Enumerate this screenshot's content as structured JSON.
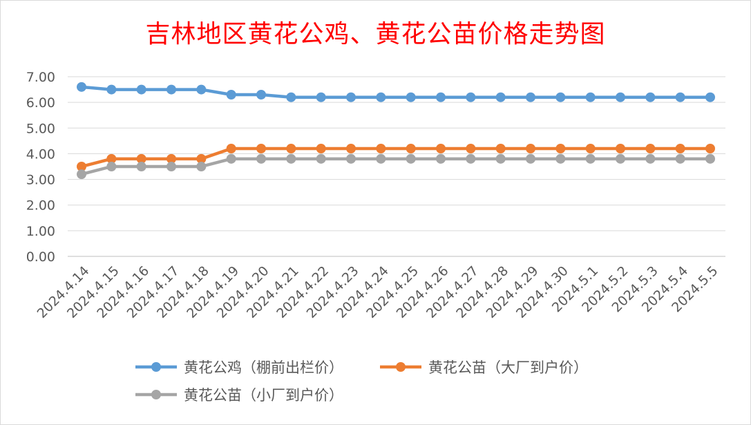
{
  "chart_data": {
    "type": "line",
    "title": "吉林地区黄花公鸡、黄花公苗价格走势图",
    "categories": [
      "2024.4.14",
      "2024.4.15",
      "2024.4.16",
      "2024.4.17",
      "2024.4.18",
      "2024.4.19",
      "2024.4.20",
      "2024.4.21",
      "2024.4.22",
      "2024.4.23",
      "2024.4.24",
      "2024.4.25",
      "2024.4.26",
      "2024.4.27",
      "2024.4.28",
      "2024.4.29",
      "2024.4.30",
      "2024.5.1",
      "2024.5.2",
      "2024.5.3",
      "2024.5.4",
      "2024.5.5"
    ],
    "ylim": [
      0,
      7
    ],
    "yticks": [
      "0.00",
      "1.00",
      "2.00",
      "3.00",
      "4.00",
      "5.00",
      "6.00",
      "7.00"
    ],
    "grid": true,
    "legend_position": "bottom",
    "series": [
      {
        "name": "黄花公鸡（棚前出栏价）",
        "color": "#5b9bd5",
        "values": [
          6.6,
          6.5,
          6.5,
          6.5,
          6.5,
          6.3,
          6.3,
          6.2,
          6.2,
          6.2,
          6.2,
          6.2,
          6.2,
          6.2,
          6.2,
          6.2,
          6.2,
          6.2,
          6.2,
          6.2,
          6.2,
          6.2
        ]
      },
      {
        "name": "黄花公苗（大厂到户价）",
        "color": "#ed7d31",
        "values": [
          3.5,
          3.8,
          3.8,
          3.8,
          3.8,
          4.2,
          4.2,
          4.2,
          4.2,
          4.2,
          4.2,
          4.2,
          4.2,
          4.2,
          4.2,
          4.2,
          4.2,
          4.2,
          4.2,
          4.2,
          4.2,
          4.2
        ]
      },
      {
        "name": "黄花公苗（小厂到户价）",
        "color": "#a5a5a5",
        "values": [
          3.2,
          3.5,
          3.5,
          3.5,
          3.5,
          3.8,
          3.8,
          3.8,
          3.8,
          3.8,
          3.8,
          3.8,
          3.8,
          3.8,
          3.8,
          3.8,
          3.8,
          3.8,
          3.8,
          3.8,
          3.8,
          3.8
        ]
      }
    ]
  }
}
